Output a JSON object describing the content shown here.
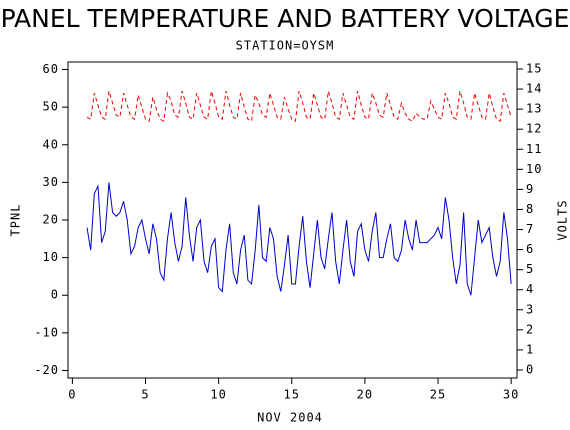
{
  "chart_data": {
    "type": "line",
    "title": "PANEL TEMPERATURE AND BATTERY VOLTAGE",
    "subtitle": "STATION=OYSM",
    "x_label": "NOV 2004",
    "y_label": "TPNL",
    "y2_label": "VOLTS",
    "xlim": [
      -0.3,
      30.4
    ],
    "xticks": [
      0,
      5,
      10,
      15,
      20,
      25,
      30
    ],
    "ylim": [
      -22,
      62
    ],
    "yticks": [
      -20,
      -10,
      0,
      10,
      20,
      30,
      40,
      50,
      60
    ],
    "y2lim": [
      -0.4,
      15.35
    ],
    "y2ticks": [
      0,
      1,
      2,
      3,
      4,
      5,
      6,
      7,
      8,
      9,
      10,
      11,
      12,
      13,
      14,
      15
    ],
    "x": [
      1,
      1.25,
      1.5,
      1.75,
      2,
      2.25,
      2.5,
      2.75,
      3,
      3.25,
      3.5,
      3.75,
      4,
      4.25,
      4.5,
      4.75,
      5,
      5.25,
      5.5,
      5.75,
      6,
      6.25,
      6.5,
      6.75,
      7,
      7.25,
      7.5,
      7.75,
      8,
      8.25,
      8.5,
      8.75,
      9,
      9.25,
      9.5,
      9.75,
      10,
      10.25,
      10.5,
      10.75,
      11,
      11.25,
      11.5,
      11.75,
      12,
      12.25,
      12.5,
      12.75,
      13,
      13.25,
      13.5,
      13.75,
      14,
      14.25,
      14.5,
      14.75,
      15,
      15.25,
      15.5,
      15.75,
      16,
      16.25,
      16.5,
      16.75,
      17,
      17.25,
      17.5,
      17.75,
      18,
      18.25,
      18.5,
      18.75,
      19,
      19.25,
      19.5,
      19.75,
      20,
      20.25,
      20.5,
      20.75,
      21,
      21.25,
      21.5,
      21.75,
      22,
      22.25,
      22.5,
      22.75,
      23,
      23.25,
      23.5,
      23.75,
      24,
      24.25,
      24.5,
      24.75,
      25,
      25.25,
      25.5,
      25.75,
      26,
      26.25,
      26.5,
      26.75,
      27,
      27.25,
      27.5,
      27.75,
      28,
      28.25,
      28.5,
      28.75,
      29,
      29.25,
      29.5,
      29.75,
      30
    ],
    "series": [
      {
        "name": "TPNL",
        "color": "#0000cc",
        "axis": "y",
        "dashed": false,
        "values": [
          18,
          12,
          27,
          29,
          14,
          17,
          30,
          22,
          21,
          22,
          25,
          20,
          11,
          13,
          18,
          20,
          15,
          11,
          19,
          15,
          6,
          4,
          15,
          22,
          14,
          9,
          13,
          26,
          16,
          9,
          18,
          20,
          9,
          6,
          13,
          15,
          2,
          1,
          12,
          19,
          6,
          3,
          12,
          16,
          4,
          3,
          12,
          24,
          10,
          9,
          18,
          15,
          5,
          1,
          8,
          16,
          3,
          3,
          13,
          21,
          9,
          2,
          11,
          20,
          10,
          7,
          15,
          22,
          9,
          3,
          12,
          20,
          9,
          5,
          17,
          19,
          12,
          9,
          17,
          22,
          10,
          10,
          15,
          19,
          10,
          9,
          12,
          20,
          15,
          12,
          20,
          14,
          14,
          14,
          15,
          16,
          18,
          15,
          26,
          20,
          10,
          3,
          8,
          22,
          3,
          0,
          10,
          20,
          14,
          16,
          18,
          10,
          5,
          9,
          22,
          15,
          3
        ]
      },
      {
        "name": "VOLTS",
        "color": "#ee0000",
        "axis": "y2",
        "dashed": true,
        "values": [
          12.6,
          12.5,
          13.8,
          13.2,
          12.6,
          12.5,
          13.9,
          13.3,
          12.7,
          12.6,
          13.8,
          13.2,
          12.6,
          12.5,
          13.7,
          13.1,
          12.5,
          12.4,
          13.6,
          13.0,
          12.5,
          12.4,
          13.8,
          13.4,
          12.7,
          12.6,
          13.9,
          13.3,
          12.6,
          12.5,
          13.8,
          13.2,
          12.6,
          12.5,
          13.9,
          13.3,
          12.6,
          12.5,
          13.9,
          13.2,
          12.6,
          12.5,
          13.8,
          13.1,
          12.5,
          12.4,
          13.7,
          13.3,
          12.7,
          12.6,
          13.8,
          13.2,
          12.6,
          12.5,
          13.6,
          13.0,
          12.5,
          12.4,
          13.9,
          13.3,
          12.6,
          12.5,
          13.8,
          13.2,
          12.6,
          12.5,
          13.9,
          13.3,
          12.6,
          12.5,
          13.8,
          13.2,
          12.6,
          12.5,
          13.9,
          13.2,
          12.6,
          12.5,
          13.8,
          13.3,
          12.7,
          12.6,
          13.8,
          13.2,
          12.6,
          12.5,
          13.3,
          12.8,
          12.5,
          12.4,
          12.8,
          12.6,
          12.5,
          12.5,
          13.4,
          13.0,
          12.6,
          12.5,
          13.8,
          13.3,
          12.6,
          12.5,
          13.9,
          13.3,
          12.6,
          12.5,
          13.8,
          13.2,
          12.6,
          12.5,
          13.8,
          13.1,
          12.5,
          12.4,
          13.8,
          13.2,
          12.6
        ]
      }
    ]
  }
}
